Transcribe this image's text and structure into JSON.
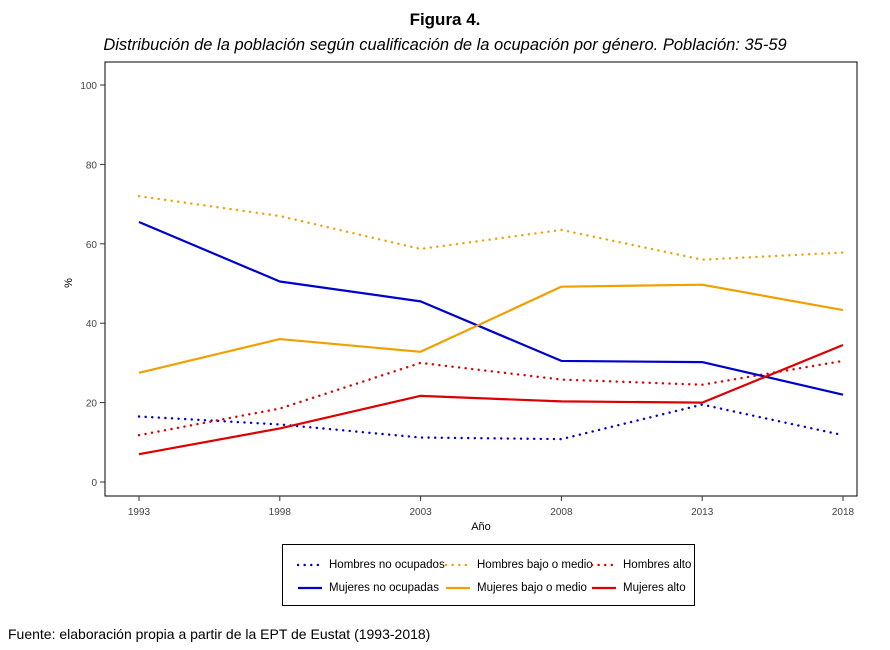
{
  "figure_number": "Figura 4.",
  "figure_title": "Distribución de la población según cualificación de la ocupación por género. Población: 35-59",
  "source": "Fuente: elaboración propia a partir de la EPT de Eustat (1993-2018)",
  "colors": {
    "blue": "#0000cc",
    "orange": "#f0a000",
    "red": "#dd0000"
  },
  "chart_data": {
    "type": "line",
    "title": "",
    "xlabel": "Año",
    "ylabel": "%",
    "x": [
      1993,
      1998,
      2003,
      2008,
      2013,
      2018
    ],
    "xlim": [
      1993,
      2018
    ],
    "ylim": [
      0,
      100
    ],
    "yticks": [
      0,
      20,
      40,
      60,
      80,
      100
    ],
    "grid": false,
    "legend_position": "bottom",
    "series": [
      {
        "name": "Hombres no ocupados",
        "color": "#0000cc",
        "style": "dotted",
        "values": [
          16.5,
          14.5,
          11.2,
          10.8,
          19.5,
          11.8
        ]
      },
      {
        "name": "Hombres bajo o medio",
        "color": "#f0a000",
        "style": "dotted",
        "values": [
          72.0,
          67.0,
          58.7,
          63.5,
          56.0,
          57.8
        ]
      },
      {
        "name": "Hombres alto",
        "color": "#dd0000",
        "style": "dotted",
        "values": [
          11.8,
          18.5,
          30.0,
          25.8,
          24.5,
          30.5
        ]
      },
      {
        "name": "Mujeres no ocupadas",
        "color": "#0000cc",
        "style": "solid",
        "values": [
          65.5,
          50.5,
          45.5,
          30.5,
          30.2,
          22.0
        ]
      },
      {
        "name": "Mujeres bajo o medio",
        "color": "#f0a000",
        "style": "solid",
        "values": [
          27.5,
          36.0,
          32.8,
          49.2,
          49.7,
          43.3
        ]
      },
      {
        "name": "Mujeres alto",
        "color": "#dd0000",
        "style": "solid",
        "values": [
          7.0,
          13.5,
          21.7,
          20.3,
          20.0,
          34.5
        ]
      }
    ]
  }
}
